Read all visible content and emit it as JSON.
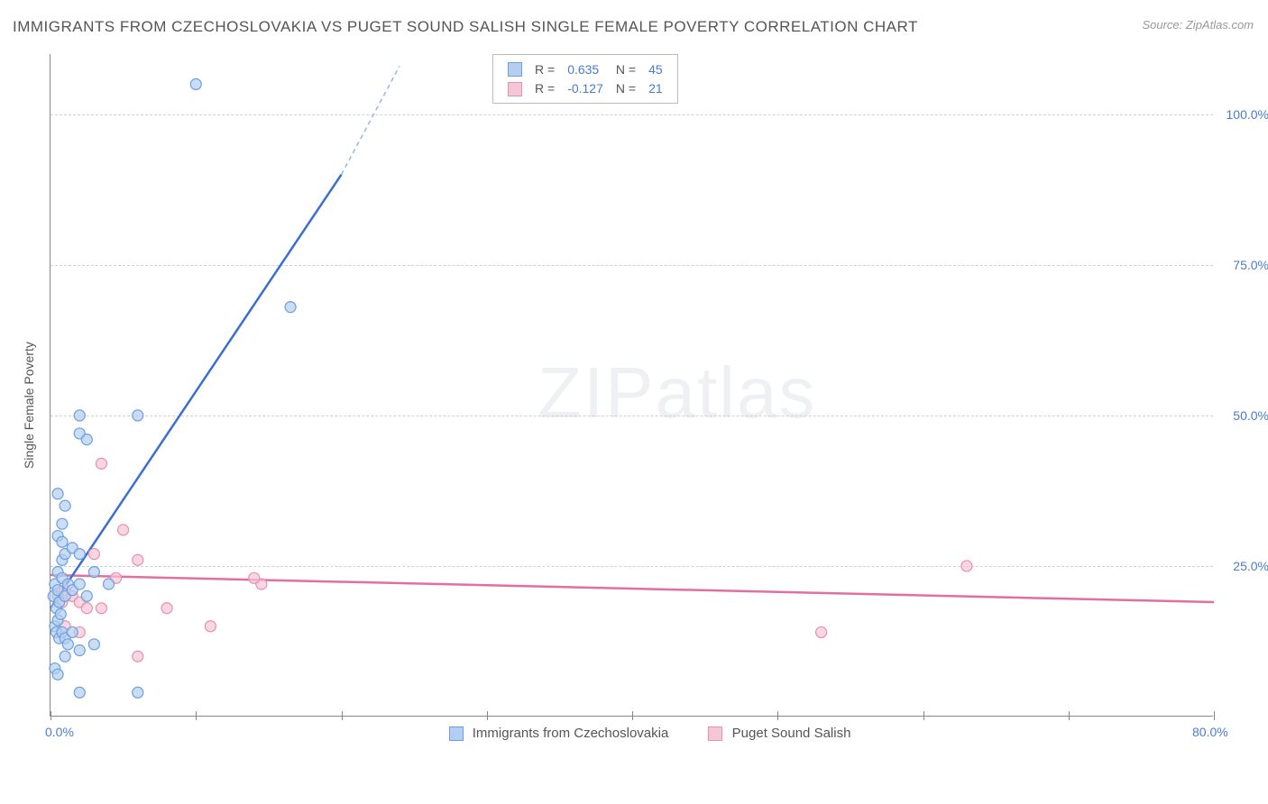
{
  "title": "IMMIGRANTS FROM CZECHOSLOVAKIA VS PUGET SOUND SALISH SINGLE FEMALE POVERTY CORRELATION CHART",
  "title_color": "#555555",
  "source_label": "Source: ZipAtlas.com",
  "source_color": "#999999",
  "y_axis_label": "Single Female Poverty",
  "y_axis_label_color": "#555555",
  "watermark_text": "ZIPatlas",
  "watermark_color": "#7a8aa0",
  "background_color": "#ffffff",
  "grid_color": "#d8d8d8",
  "axis_line_color": "#888888",
  "xlim": [
    0,
    80
  ],
  "ylim": [
    0,
    110
  ],
  "x_ticks": [
    0,
    10,
    20,
    30,
    40,
    50,
    60,
    70,
    80
  ],
  "x_tick_labels": {
    "0": "0.0%",
    "80": "80.0%"
  },
  "x_tick_label_color": "#4a7bd0",
  "y_gridlines": [
    25,
    50,
    75,
    100
  ],
  "y_tick_labels": {
    "25": "25.0%",
    "50": "50.0%",
    "75": "75.0%",
    "100": "100.0%"
  },
  "y_tick_label_color": "#4a7bd0",
  "series": {
    "a": {
      "name": "Immigrants from Czechoslovakia",
      "color_fill": "#b3cef0",
      "color_stroke": "#6b9fe0",
      "line_color": "#3a6fd0",
      "line_dash_color": "#9ab6e0",
      "R": "0.635",
      "N": "45",
      "marker_radius": 6,
      "line_width": 2.5,
      "trend": {
        "x1": 0,
        "y1": 18,
        "x2": 20,
        "y2": 90,
        "x2_ext": 24,
        "y2_ext": 108
      },
      "points": [
        [
          0.2,
          20
        ],
        [
          0.3,
          22
        ],
        [
          0.4,
          18
        ],
        [
          0.5,
          21
        ],
        [
          0.6,
          19
        ],
        [
          0.5,
          24
        ],
        [
          0.8,
          23
        ],
        [
          1.0,
          20
        ],
        [
          1.2,
          22
        ],
        [
          0.3,
          15
        ],
        [
          0.4,
          14
        ],
        [
          0.6,
          13
        ],
        [
          0.8,
          14
        ],
        [
          1.0,
          13
        ],
        [
          1.2,
          12
        ],
        [
          0.5,
          16
        ],
        [
          0.7,
          17
        ],
        [
          1.5,
          21
        ],
        [
          2.0,
          22
        ],
        [
          2.5,
          20
        ],
        [
          0.8,
          26
        ],
        [
          1.0,
          27
        ],
        [
          1.5,
          28
        ],
        [
          2.0,
          27
        ],
        [
          0.5,
          30
        ],
        [
          0.8,
          32
        ],
        [
          1.0,
          35
        ],
        [
          0.5,
          37
        ],
        [
          2.0,
          47
        ],
        [
          2.5,
          46
        ],
        [
          2.0,
          50
        ],
        [
          6.0,
          50
        ],
        [
          1.0,
          10
        ],
        [
          2.0,
          11
        ],
        [
          3.0,
          12
        ],
        [
          0.3,
          8
        ],
        [
          0.5,
          7
        ],
        [
          2.0,
          4
        ],
        [
          6.0,
          4
        ],
        [
          10.0,
          105
        ],
        [
          16.5,
          68
        ],
        [
          3.0,
          24
        ],
        [
          4.0,
          22
        ],
        [
          1.5,
          14
        ],
        [
          0.8,
          29
        ]
      ]
    },
    "b": {
      "name": "Puget Sound Salish",
      "color_fill": "#f5c6d6",
      "color_stroke": "#e88fb0",
      "line_color": "#e36fa0",
      "R": "-0.127",
      "N": "21",
      "marker_radius": 6,
      "line_width": 2.5,
      "trend": {
        "x1": 0,
        "y1": 23.5,
        "x2": 80,
        "y2": 19
      },
      "points": [
        [
          0.5,
          20
        ],
        [
          0.8,
          19
        ],
        [
          1.0,
          21
        ],
        [
          1.5,
          20
        ],
        [
          2.0,
          19
        ],
        [
          2.5,
          18
        ],
        [
          4.5,
          23
        ],
        [
          6.0,
          26
        ],
        [
          3.0,
          27
        ],
        [
          5.0,
          31
        ],
        [
          3.5,
          42
        ],
        [
          3.5,
          18
        ],
        [
          8.0,
          18
        ],
        [
          11.0,
          15
        ],
        [
          6.0,
          10
        ],
        [
          14.5,
          22
        ],
        [
          14.0,
          23
        ],
        [
          53.0,
          14
        ],
        [
          63.0,
          25
        ],
        [
          1.0,
          15
        ],
        [
          2.0,
          14
        ]
      ]
    }
  },
  "legend_top": {
    "r_label": "R =",
    "n_label": "N =",
    "value_color": "#4a7bd0",
    "label_color": "#555555"
  },
  "legend_bottom": {
    "text_color": "#555555"
  }
}
